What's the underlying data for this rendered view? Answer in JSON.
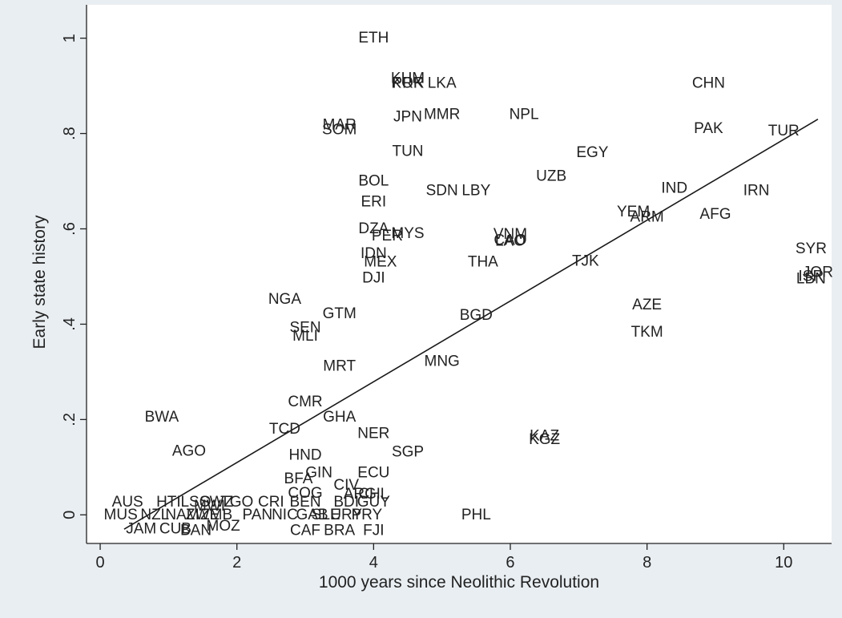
{
  "chart_data": {
    "type": "scatter",
    "xlabel": "1000 years since Neolithic Revolution",
    "ylabel": "Early state history",
    "xlim": [
      -0.2,
      10.7
    ],
    "ylim": [
      -0.06,
      1.07
    ],
    "xticks": [
      {
        "v": 0,
        "label": "0"
      },
      {
        "v": 2,
        "label": "2"
      },
      {
        "v": 4,
        "label": "4"
      },
      {
        "v": 6,
        "label": "6"
      },
      {
        "v": 8,
        "label": "8"
      },
      {
        "v": 10,
        "label": "10"
      }
    ],
    "yticks": [
      {
        "v": 0,
        "label": "0"
      },
      {
        "v": 0.2,
        "label": ".2"
      },
      {
        "v": 0.4,
        "label": ".4"
      },
      {
        "v": 0.6,
        "label": ".6"
      },
      {
        "v": 0.8,
        "label": ".8"
      },
      {
        "v": 1,
        "label": "1"
      }
    ],
    "grid": false,
    "marker_labels": "ISO country codes",
    "fit_line": {
      "x": [
        0.35,
        10.5
      ],
      "y": [
        -0.03,
        0.83
      ]
    },
    "points": [
      {
        "label": "ETH",
        "x": 4.0,
        "y": 1.0
      },
      {
        "label": "KHM",
        "x": 4.5,
        "y": 0.915
      },
      {
        "label": "KOR",
        "x": 4.5,
        "y": 0.905
      },
      {
        "label": "PRK",
        "x": 4.5,
        "y": 0.905
      },
      {
        "label": "LKA",
        "x": 5.0,
        "y": 0.905
      },
      {
        "label": "CHN",
        "x": 8.9,
        "y": 0.905
      },
      {
        "label": "JPN",
        "x": 4.5,
        "y": 0.835
      },
      {
        "label": "MMR",
        "x": 5.0,
        "y": 0.84
      },
      {
        "label": "NPL",
        "x": 6.2,
        "y": 0.84
      },
      {
        "label": "MAR",
        "x": 3.5,
        "y": 0.818
      },
      {
        "label": "SOM",
        "x": 3.5,
        "y": 0.808
      },
      {
        "label": "PAK",
        "x": 8.9,
        "y": 0.81
      },
      {
        "label": "TUR",
        "x": 10.0,
        "y": 0.805
      },
      {
        "label": "EGY",
        "x": 7.2,
        "y": 0.76
      },
      {
        "label": "TUN",
        "x": 4.5,
        "y": 0.762
      },
      {
        "label": "UZB",
        "x": 6.6,
        "y": 0.71
      },
      {
        "label": "BOL",
        "x": 4.0,
        "y": 0.7
      },
      {
        "label": "SDN",
        "x": 5.0,
        "y": 0.68
      },
      {
        "label": "LBY",
        "x": 5.5,
        "y": 0.68
      },
      {
        "label": "IND",
        "x": 8.4,
        "y": 0.685
      },
      {
        "label": "IRN",
        "x": 9.6,
        "y": 0.68
      },
      {
        "label": "ERI",
        "x": 4.0,
        "y": 0.656
      },
      {
        "label": "YEM",
        "x": 7.8,
        "y": 0.635
      },
      {
        "label": "ARM",
        "x": 8.0,
        "y": 0.624
      },
      {
        "label": "AFG",
        "x": 9.0,
        "y": 0.63
      },
      {
        "label": "DZA",
        "x": 4.0,
        "y": 0.6
      },
      {
        "label": "MYS",
        "x": 4.5,
        "y": 0.59
      },
      {
        "label": "PER",
        "x": 4.2,
        "y": 0.585
      },
      {
        "label": "VNM",
        "x": 6.0,
        "y": 0.588
      },
      {
        "label": "CAO",
        "x": 6.0,
        "y": 0.576
      },
      {
        "label": "LAO",
        "x": 6.0,
        "y": 0.574
      },
      {
        "label": "IDN",
        "x": 4.0,
        "y": 0.548
      },
      {
        "label": "MEX",
        "x": 4.1,
        "y": 0.53
      },
      {
        "label": "THA",
        "x": 5.6,
        "y": 0.53
      },
      {
        "label": "TJK",
        "x": 7.1,
        "y": 0.532
      },
      {
        "label": "SYR",
        "x": 10.4,
        "y": 0.558
      },
      {
        "label": "JOR",
        "x": 10.5,
        "y": 0.508
      },
      {
        "label": "ISR",
        "x": 10.4,
        "y": 0.5
      },
      {
        "label": "LBN",
        "x": 10.4,
        "y": 0.495
      },
      {
        "label": "DJI",
        "x": 4.0,
        "y": 0.497
      },
      {
        "label": "NGA",
        "x": 2.7,
        "y": 0.452
      },
      {
        "label": "AZE",
        "x": 8.0,
        "y": 0.44
      },
      {
        "label": "GTM",
        "x": 3.5,
        "y": 0.422
      },
      {
        "label": "BGD",
        "x": 5.5,
        "y": 0.418
      },
      {
        "label": "SEN",
        "x": 3.0,
        "y": 0.392
      },
      {
        "label": "MLI",
        "x": 3.0,
        "y": 0.375
      },
      {
        "label": "TKM",
        "x": 8.0,
        "y": 0.383
      },
      {
        "label": "MRT",
        "x": 3.5,
        "y": 0.312
      },
      {
        "label": "MNG",
        "x": 5.0,
        "y": 0.322
      },
      {
        "label": "CMR",
        "x": 3.0,
        "y": 0.237
      },
      {
        "label": "BWA",
        "x": 0.9,
        "y": 0.205
      },
      {
        "label": "GHA",
        "x": 3.5,
        "y": 0.205
      },
      {
        "label": "TCD",
        "x": 2.7,
        "y": 0.18
      },
      {
        "label": "NER",
        "x": 4.0,
        "y": 0.17
      },
      {
        "label": "KAZ",
        "x": 6.5,
        "y": 0.165
      },
      {
        "label": "KGZ",
        "x": 6.5,
        "y": 0.158
      },
      {
        "label": "AGO",
        "x": 1.3,
        "y": 0.133
      },
      {
        "label": "SGP",
        "x": 4.5,
        "y": 0.132
      },
      {
        "label": "HND",
        "x": 3.0,
        "y": 0.125
      },
      {
        "label": "GIN",
        "x": 3.2,
        "y": 0.088
      },
      {
        "label": "ECU",
        "x": 4.0,
        "y": 0.088
      },
      {
        "label": "BFA",
        "x": 2.9,
        "y": 0.075
      },
      {
        "label": "CIV",
        "x": 3.6,
        "y": 0.062
      },
      {
        "label": "CHL",
        "x": 4.0,
        "y": 0.043
      },
      {
        "label": "COG",
        "x": 3.0,
        "y": 0.045
      },
      {
        "label": "ARG",
        "x": 3.8,
        "y": 0.043
      },
      {
        "label": "GUY",
        "x": 4.0,
        "y": 0.027
      },
      {
        "label": "AUS",
        "x": 0.4,
        "y": 0.027
      },
      {
        "label": "HTI",
        "x": 1.0,
        "y": 0.027
      },
      {
        "label": "LSO",
        "x": 1.4,
        "y": 0.027
      },
      {
        "label": "SWZ",
        "x": 1.7,
        "y": 0.027
      },
      {
        "label": "TGO",
        "x": 2.0,
        "y": 0.027
      },
      {
        "label": "CRI",
        "x": 2.5,
        "y": 0.027
      },
      {
        "label": "BEN",
        "x": 3.0,
        "y": 0.027
      },
      {
        "label": "BDI",
        "x": 3.6,
        "y": 0.027
      },
      {
        "label": "MWI",
        "x": 1.6,
        "y": 0.018
      },
      {
        "label": "MUS",
        "x": 0.3,
        "y": 0.0
      },
      {
        "label": "NZL",
        "x": 0.8,
        "y": 0.0
      },
      {
        "label": "NAM",
        "x": 1.2,
        "y": 0.0
      },
      {
        "label": "ZWE",
        "x": 1.5,
        "y": 0.0
      },
      {
        "label": "ZMB",
        "x": 1.7,
        "y": 0.0
      },
      {
        "label": "PAN",
        "x": 2.3,
        "y": 0.0
      },
      {
        "label": "NIC",
        "x": 2.7,
        "y": 0.0
      },
      {
        "label": "GAB",
        "x": 3.1,
        "y": 0.0
      },
      {
        "label": "SLE",
        "x": 3.3,
        "y": 0.0
      },
      {
        "label": "URY",
        "x": 3.6,
        "y": 0.0
      },
      {
        "label": "PRY",
        "x": 3.9,
        "y": 0.0
      },
      {
        "label": "PHL",
        "x": 5.5,
        "y": 0.0
      },
      {
        "label": "JAM",
        "x": 0.6,
        "y": -0.03
      },
      {
        "label": "CUB",
        "x": 1.1,
        "y": -0.03
      },
      {
        "label": "BAN",
        "x": 1.4,
        "y": -0.033
      },
      {
        "label": "MOZ",
        "x": 1.8,
        "y": -0.024
      },
      {
        "label": "CAF",
        "x": 3.0,
        "y": -0.033
      },
      {
        "label": "BRA",
        "x": 3.5,
        "y": -0.033
      },
      {
        "label": "FJI",
        "x": 4.0,
        "y": -0.033
      }
    ]
  }
}
